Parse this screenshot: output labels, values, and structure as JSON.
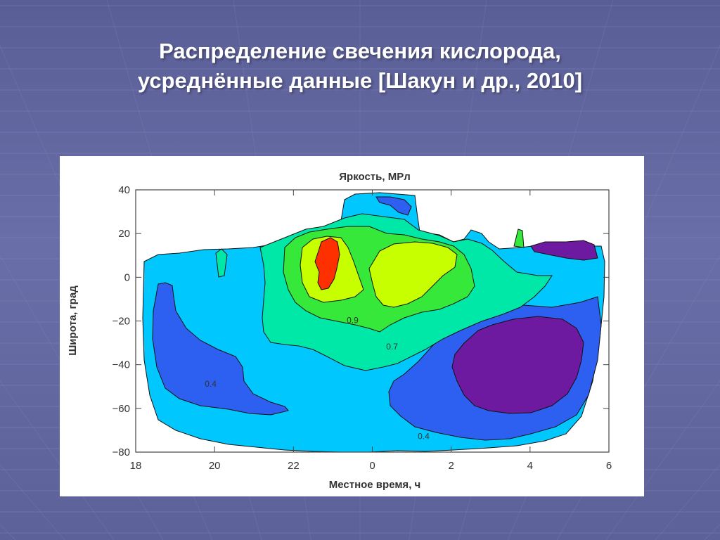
{
  "slide": {
    "title_line1": "Распределение свечения кислорода,",
    "title_line2": "усреднённые данные [Шакун и др., 2010]"
  },
  "theme": {
    "background": "#5f639c",
    "grid_line": "#8a8ec4"
  },
  "chart_data": {
    "type": "heatmap",
    "title": "Яркость, МРл",
    "xlabel": "Местное время, ч",
    "ylabel": "Широта, град",
    "x_ticks": [
      "18",
      "20",
      "22",
      "0",
      "2",
      "4",
      "6"
    ],
    "y_ticks": [
      "40",
      "20",
      "0",
      "−20",
      "−40",
      "−60",
      "−80"
    ],
    "xlim": [
      18,
      30
    ],
    "ylim": [
      -80,
      40
    ],
    "contour_labels": [
      {
        "text": "0.9",
        "x": 23.5,
        "y": -21
      },
      {
        "text": "0.7",
        "x": 24.5,
        "y": -33
      },
      {
        "text": "0.4",
        "x": 19.9,
        "y": -50
      },
      {
        "text": "0.4",
        "x": 25.3,
        "y": -74
      }
    ],
    "colors": {
      "level_low": "#2d5ff0",
      "level_mid": "#00c8ff",
      "level_green1": "#00e8a8",
      "level_green2": "#36e83a",
      "level_yellow": "#c8ff00",
      "level_max": "#ff3000",
      "level_min": "#6e1aa0"
    }
  }
}
